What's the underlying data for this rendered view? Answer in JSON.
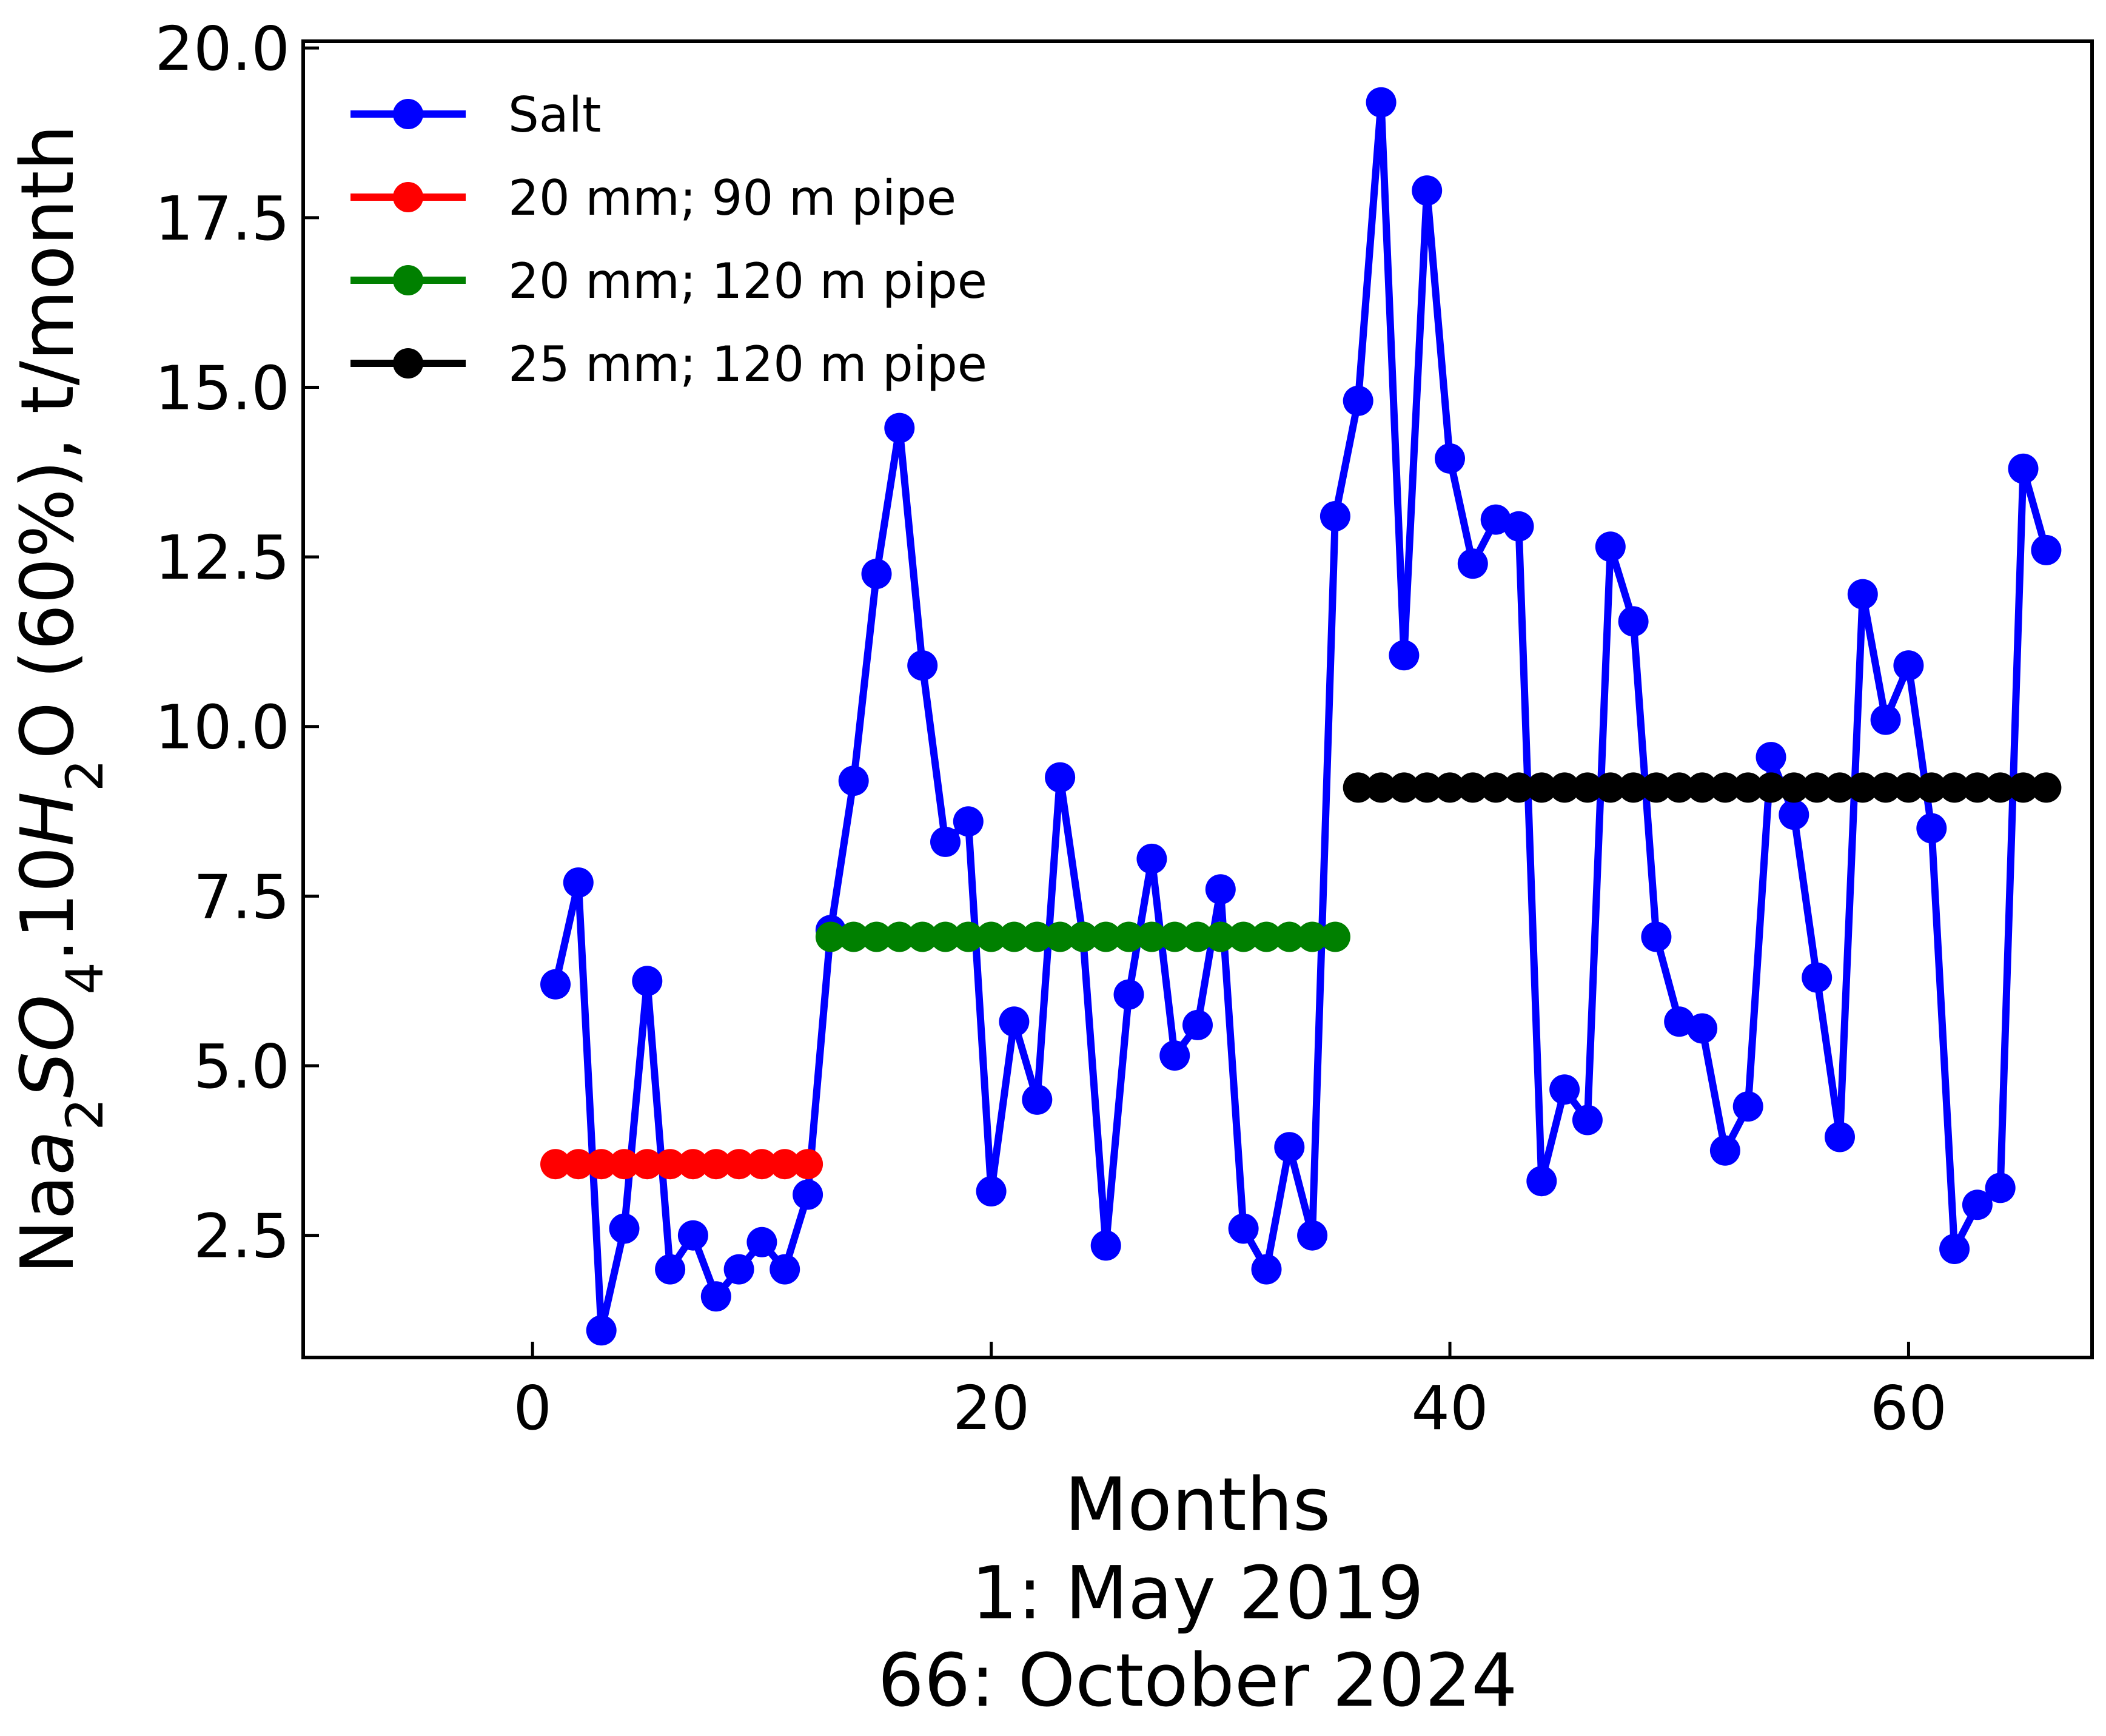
{
  "chart_data": {
    "type": "line",
    "title": "",
    "xlabel_lines": [
      "Months",
      "1: May 2019",
      "66: October 2024"
    ],
    "ylabel": {
      "parts": [
        {
          "text": "Na",
          "style": "normal",
          "shift": "none"
        },
        {
          "text": "a",
          "style": "italic",
          "shift": "none"
        },
        {
          "text": "2",
          "style": "normal",
          "shift": "sub"
        },
        {
          "text": "SO",
          "style": "italic",
          "shift": "none"
        },
        {
          "text": "4",
          "style": "normal",
          "shift": "sub"
        },
        {
          "text": ".10",
          "style": "normal",
          "shift": "none"
        },
        {
          "text": "H",
          "style": "italic",
          "shift": "none"
        },
        {
          "text": "2",
          "style": "normal",
          "shift": "sub"
        },
        {
          "text": "O (60%), t/month",
          "style": "normal",
          "shift": "none"
        }
      ]
    },
    "xlim": [
      -10,
      68
    ],
    "ylim": [
      0.7,
      20.1
    ],
    "xticks": [
      0,
      20,
      40,
      60
    ],
    "yticks": [
      2.5,
      5.0,
      7.5,
      10.0,
      12.5,
      15.0,
      17.5,
      20.0
    ],
    "xtick_labels": [
      "0",
      "20",
      "40",
      "60"
    ],
    "ytick_labels": [
      "2.5",
      "5.0",
      "7.5",
      "10.0",
      "12.5",
      "15.0",
      "17.5",
      "20.0"
    ],
    "grid": false,
    "legend_position": "top-left",
    "series": [
      {
        "name": "Salt",
        "color": "#0000ff",
        "x": [
          1,
          2,
          3,
          4,
          5,
          6,
          7,
          8,
          9,
          10,
          11,
          12,
          13,
          14,
          15,
          16,
          17,
          18,
          19,
          20,
          21,
          22,
          23,
          24,
          25,
          26,
          27,
          28,
          29,
          30,
          31,
          32,
          33,
          34,
          35,
          36,
          37,
          38,
          39,
          40,
          41,
          42,
          43,
          44,
          45,
          46,
          47,
          48,
          49,
          50,
          51,
          52,
          53,
          54,
          55,
          56,
          57,
          58,
          59,
          60,
          61,
          62,
          63,
          64,
          65,
          66
        ],
        "y": [
          6.2,
          7.7,
          1.1,
          2.6,
          6.25,
          2.0,
          2.5,
          1.6,
          2.0,
          2.4,
          2.0,
          3.1,
          7.0,
          9.2,
          12.25,
          14.4,
          10.9,
          8.3,
          8.6,
          3.15,
          5.65,
          4.5,
          9.25,
          6.9,
          2.35,
          6.05,
          8.05,
          5.15,
          5.6,
          7.6,
          2.6,
          2.0,
          3.8,
          2.5,
          13.1,
          14.8,
          19.2,
          11.05,
          17.9,
          13.95,
          12.4,
          13.05,
          12.95,
          3.3,
          4.65,
          4.2,
          12.65,
          11.55,
          6.9,
          5.65,
          5.55,
          3.75,
          4.4,
          9.55,
          8.7,
          6.3,
          3.95,
          11.95,
          10.1,
          10.9,
          8.5,
          2.3,
          2.95,
          3.2,
          13.8,
          12.6
        ]
      },
      {
        "name": "20 mm; 90 m pipe",
        "color": "#ff0000",
        "x": [
          1,
          2,
          3,
          4,
          5,
          6,
          7,
          8,
          9,
          10,
          11,
          12
        ],
        "y": [
          3.55,
          3.55,
          3.55,
          3.55,
          3.55,
          3.55,
          3.55,
          3.55,
          3.55,
          3.55,
          3.55,
          3.55
        ]
      },
      {
        "name": "20 mm; 120 m pipe",
        "color": "#008000",
        "x": [
          13,
          14,
          15,
          16,
          17,
          18,
          19,
          20,
          21,
          22,
          23,
          24,
          25,
          26,
          27,
          28,
          29,
          30,
          31,
          32,
          33,
          34,
          35
        ],
        "y": [
          6.9,
          6.9,
          6.9,
          6.9,
          6.9,
          6.9,
          6.9,
          6.9,
          6.9,
          6.9,
          6.9,
          6.9,
          6.9,
          6.9,
          6.9,
          6.9,
          6.9,
          6.9,
          6.9,
          6.9,
          6.9,
          6.9,
          6.9
        ]
      },
      {
        "name": "25 mm; 120 m pipe",
        "color": "#000000",
        "x": [
          36,
          37,
          38,
          39,
          40,
          41,
          42,
          43,
          44,
          45,
          46,
          47,
          48,
          49,
          50,
          51,
          52,
          53,
          54,
          55,
          56,
          57,
          58,
          59,
          60,
          61,
          62,
          63,
          64,
          65,
          66
        ],
        "y": [
          9.1,
          9.1,
          9.1,
          9.1,
          9.1,
          9.1,
          9.1,
          9.1,
          9.1,
          9.1,
          9.1,
          9.1,
          9.1,
          9.1,
          9.1,
          9.1,
          9.1,
          9.1,
          9.1,
          9.1,
          9.1,
          9.1,
          9.1,
          9.1,
          9.1,
          9.1,
          9.1,
          9.1,
          9.1,
          9.1,
          9.1
        ]
      }
    ]
  }
}
